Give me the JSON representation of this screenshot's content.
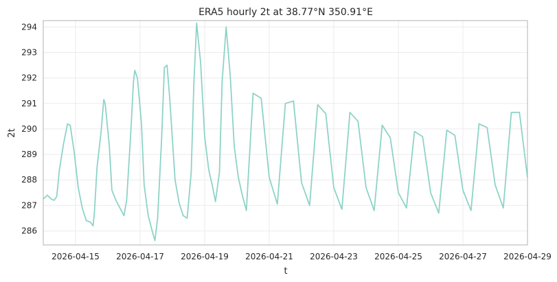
{
  "chart_data": {
    "type": "line",
    "title": "ERA5 hourly 2t at 38.77°N 350.91°E",
    "xlabel": "t",
    "ylabel": "2t",
    "x_ticks": [
      "2026-04-15",
      "2026-04-17",
      "2026-04-19",
      "2026-04-21",
      "2026-04-23",
      "2026-04-25",
      "2026-04-27",
      "2026-04-29"
    ],
    "y_ticks": [
      286,
      287,
      288,
      289,
      290,
      291,
      292,
      293,
      294
    ],
    "xlim": [
      "2026-04-14T00:00",
      "2026-04-29T00:00"
    ],
    "ylim": [
      285.45,
      294.25
    ],
    "grid": true,
    "line_color": "#8dd3c7",
    "series": [
      {
        "points": [
          [
            "2026-04-14T00:00",
            287.25
          ],
          [
            "2026-04-14T03:00",
            287.4
          ],
          [
            "2026-04-14T06:00",
            287.25
          ],
          [
            "2026-04-14T08:00",
            287.2
          ],
          [
            "2026-04-14T10:00",
            287.35
          ],
          [
            "2026-04-14T12:00",
            288.4
          ],
          [
            "2026-04-14T15:00",
            289.4
          ],
          [
            "2026-04-14T18:00",
            290.2
          ],
          [
            "2026-04-14T20:00",
            290.15
          ],
          [
            "2026-04-14T23:00",
            289.1
          ],
          [
            "2026-04-15T02:00",
            287.7
          ],
          [
            "2026-04-15T05:00",
            286.9
          ],
          [
            "2026-04-15T08:00",
            286.4
          ],
          [
            "2026-04-15T11:00",
            286.35
          ],
          [
            "2026-04-15T13:00",
            286.2
          ],
          [
            "2026-04-15T14:00",
            286.7
          ],
          [
            "2026-04-15T16:00",
            288.5
          ],
          [
            "2026-04-15T19:00",
            289.9
          ],
          [
            "2026-04-15T21:00",
            291.15
          ],
          [
            "2026-04-15T22:00",
            291.0
          ],
          [
            "2026-04-16T01:00",
            289.4
          ],
          [
            "2026-04-16T03:00",
            287.6
          ],
          [
            "2026-04-16T06:00",
            287.2
          ],
          [
            "2026-04-16T09:00",
            286.9
          ],
          [
            "2026-04-16T12:00",
            286.6
          ],
          [
            "2026-04-16T14:00",
            287.2
          ],
          [
            "2026-04-16T17:00",
            289.8
          ],
          [
            "2026-04-16T19:00",
            291.8
          ],
          [
            "2026-04-16T20:00",
            292.3
          ],
          [
            "2026-04-16T22:00",
            292.0
          ],
          [
            "2026-04-17T01:00",
            290.2
          ],
          [
            "2026-04-17T03:00",
            287.8
          ],
          [
            "2026-04-17T06:00",
            286.6
          ],
          [
            "2026-04-17T09:00",
            286.0
          ],
          [
            "2026-04-17T11:00",
            285.62
          ],
          [
            "2026-04-17T13:00",
            286.5
          ],
          [
            "2026-04-17T16:00",
            289.6
          ],
          [
            "2026-04-17T18:00",
            292.4
          ],
          [
            "2026-04-17T20:00",
            292.5
          ],
          [
            "2026-04-17T22:00",
            291.2
          ],
          [
            "2026-04-18T02:00",
            288.0
          ],
          [
            "2026-04-18T05:00",
            287.1
          ],
          [
            "2026-04-18T08:00",
            286.6
          ],
          [
            "2026-04-18T11:00",
            286.5
          ],
          [
            "2026-04-18T14:00",
            288.3
          ],
          [
            "2026-04-18T16:00",
            291.8
          ],
          [
            "2026-04-18T18:00",
            294.15
          ],
          [
            "2026-04-18T21:00",
            292.6
          ],
          [
            "2026-04-19T00:00",
            289.7
          ],
          [
            "2026-04-19T03:00",
            288.4
          ],
          [
            "2026-04-19T06:00",
            287.7
          ],
          [
            "2026-04-19T08:00",
            287.15
          ],
          [
            "2026-04-19T11:00",
            288.3
          ],
          [
            "2026-04-19T13:00",
            291.9
          ],
          [
            "2026-04-19T16:00",
            294.0
          ],
          [
            "2026-04-19T19:00",
            292.1
          ],
          [
            "2026-04-19T22:00",
            289.3
          ],
          [
            "2026-04-20T01:00",
            288.1
          ],
          [
            "2026-04-20T04:00",
            287.4
          ],
          [
            "2026-04-20T07:00",
            286.8
          ],
          [
            "2026-04-20T12:00",
            291.4
          ],
          [
            "2026-04-20T18:00",
            291.2
          ],
          [
            "2026-04-21T00:00",
            288.1
          ],
          [
            "2026-04-21T06:00",
            287.05
          ],
          [
            "2026-04-21T12:00",
            291.0
          ],
          [
            "2026-04-21T18:00",
            291.1
          ],
          [
            "2026-04-22T00:00",
            287.9
          ],
          [
            "2026-04-22T06:00",
            287.0
          ],
          [
            "2026-04-22T12:00",
            290.95
          ],
          [
            "2026-04-22T18:00",
            290.6
          ],
          [
            "2026-04-23T00:00",
            287.7
          ],
          [
            "2026-04-23T06:00",
            286.85
          ],
          [
            "2026-04-23T12:00",
            290.65
          ],
          [
            "2026-04-23T18:00",
            290.3
          ],
          [
            "2026-04-24T00:00",
            287.7
          ],
          [
            "2026-04-24T06:00",
            286.8
          ],
          [
            "2026-04-24T12:00",
            290.15
          ],
          [
            "2026-04-24T18:00",
            289.65
          ],
          [
            "2026-04-25T00:00",
            287.5
          ],
          [
            "2026-04-25T06:00",
            286.9
          ],
          [
            "2026-04-25T12:00",
            289.9
          ],
          [
            "2026-04-25T18:00",
            289.7
          ],
          [
            "2026-04-26T00:00",
            287.5
          ],
          [
            "2026-04-26T06:00",
            286.7
          ],
          [
            "2026-04-26T12:00",
            289.95
          ],
          [
            "2026-04-26T18:00",
            289.75
          ],
          [
            "2026-04-27T00:00",
            287.6
          ],
          [
            "2026-04-27T06:00",
            286.8
          ],
          [
            "2026-04-27T12:00",
            290.2
          ],
          [
            "2026-04-27T18:00",
            290.05
          ],
          [
            "2026-04-28T00:00",
            287.8
          ],
          [
            "2026-04-28T06:00",
            286.9
          ],
          [
            "2026-04-28T12:00",
            290.65
          ],
          [
            "2026-04-28T18:00",
            290.65
          ],
          [
            "2026-04-29T00:00",
            288.1
          ]
        ]
      }
    ]
  }
}
